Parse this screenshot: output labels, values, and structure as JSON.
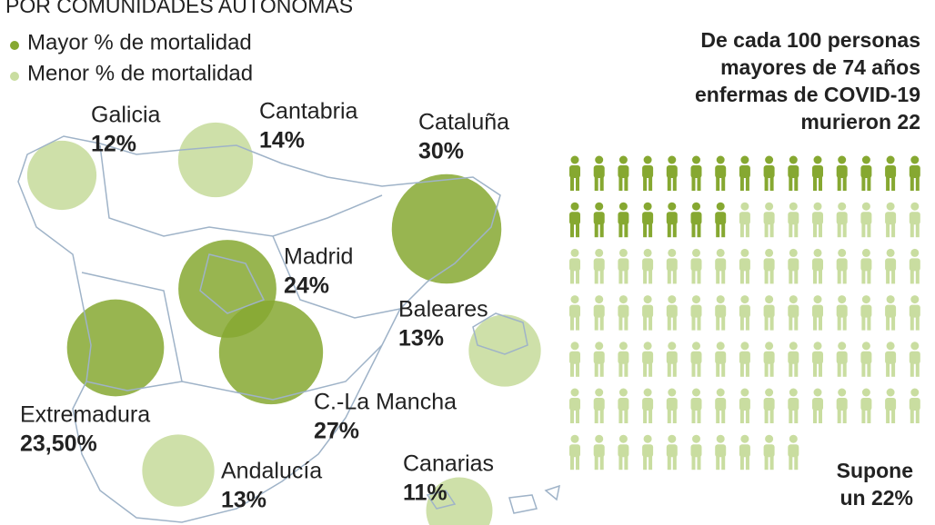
{
  "header": {
    "subtitle": "POR COMUNIDADES AUTÓNOMAS"
  },
  "legend": [
    {
      "label": "Mayor % de mortalidad",
      "color": "#86a831"
    },
    {
      "label": "Menor % de mortalidad",
      "color": "#c9dda0"
    }
  ],
  "map": {
    "regions": [
      {
        "name": "Galicia",
        "value": 12,
        "label": "12%",
        "legend": 1
      },
      {
        "name": "Cantabria",
        "value": 14,
        "label": "14%",
        "legend": 1
      },
      {
        "name": "Cataluña",
        "value": 30,
        "label": "30%",
        "legend": 0
      },
      {
        "name": "Madrid",
        "value": 24,
        "label": "24%",
        "legend": 0
      },
      {
        "name": "Baleares",
        "value": 13,
        "label": "13%",
        "legend": 1
      },
      {
        "name": "C.-La Mancha",
        "value": 27,
        "label": "27%",
        "legend": 0
      },
      {
        "name": "Extremadura",
        "value": 23.5,
        "label": "23,50%",
        "legend": 0
      },
      {
        "name": "Andalucía",
        "value": 13,
        "label": "13%",
        "legend": 1
      },
      {
        "name": "Canarias",
        "value": 11,
        "label": "11%",
        "legend": 1
      }
    ]
  },
  "pictogram": {
    "title": [
      "De cada 100 personas",
      "mayores de 74 años",
      "enfermas de COVID-19",
      "murieron 22"
    ],
    "total": 100,
    "count": 22,
    "note": [
      "Supone",
      "un 22%"
    ]
  }
}
